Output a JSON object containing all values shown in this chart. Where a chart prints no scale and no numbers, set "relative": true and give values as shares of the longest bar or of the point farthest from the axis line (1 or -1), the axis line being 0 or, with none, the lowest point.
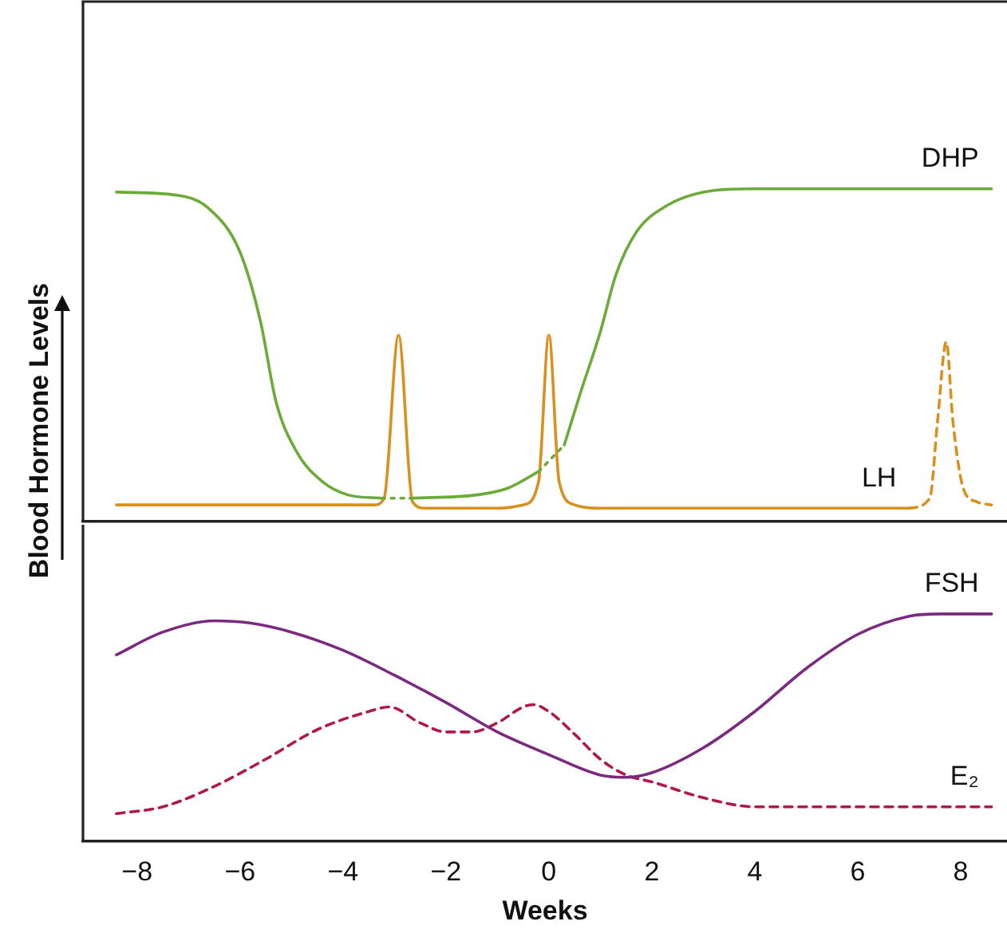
{
  "chart_data": [
    {
      "type": "line",
      "relative": true,
      "ylabel": "Blood Hormone Levels",
      "xlim": [
        -9.05,
        8.9
      ],
      "tick_labels": false,
      "grid": false,
      "legend": false,
      "marker": "none",
      "series": [
        {
          "color": "#6aab3a",
          "line_style": "solid",
          "x": [
            -8.4,
            -7.2,
            -6.6,
            -6.0,
            -5.6,
            -5.3,
            -4.9,
            -4.4,
            -3.9,
            -3.25
          ],
          "values": [
            0.99,
            0.98,
            0.94,
            0.81,
            0.6,
            0.36,
            0.21,
            0.12,
            0.08,
            0.07
          ]
        },
        {
          "color": "#6aab3a",
          "line_style": "dotted",
          "x": [
            -3.25,
            -2.7
          ],
          "values": [
            0.07,
            0.07
          ]
        },
        {
          "color": "#6aab3a",
          "line_style": "solid",
          "x": [
            -2.7,
            -1.4,
            -0.8,
            -0.2
          ],
          "values": [
            0.07,
            0.08,
            0.1,
            0.15
          ]
        },
        {
          "color": "#6aab3a",
          "line_style": "dotted",
          "x": [
            -0.2,
            0.3
          ],
          "values": [
            0.15,
            0.23
          ]
        },
        {
          "name": "DHP",
          "color": "#6aab3a",
          "line_style": "solid",
          "x": [
            0.3,
            0.6,
            1.0,
            1.3,
            1.7,
            2.3,
            3.0,
            4.0,
            8.6
          ],
          "values": [
            0.23,
            0.38,
            0.57,
            0.74,
            0.87,
            0.95,
            0.99,
            1.0,
            1.0
          ]
        },
        {
          "name": "LH",
          "color": "#d8901f",
          "line_style": "solid",
          "x": [
            -8.4,
            -3.4,
            -3.2,
            -2.92,
            -2.65,
            -2.4,
            -1.0,
            -0.5,
            -0.2,
            0,
            0.2,
            0.5,
            1.0,
            7.0
          ],
          "values": [
            0.05,
            0.05,
            0.07,
            0.56,
            0.06,
            0.04,
            0.04,
            0.05,
            0.12,
            0.56,
            0.12,
            0.05,
            0.04,
            0.04
          ]
        },
        {
          "color": "#d8901f",
          "line_style": "dashed",
          "x": [
            7.0,
            7.4,
            7.55,
            7.72,
            7.85,
            8.05,
            8.3,
            8.6
          ],
          "values": [
            0.04,
            0.07,
            0.3,
            0.54,
            0.3,
            0.1,
            0.06,
            0.05
          ]
        }
      ]
    },
    {
      "type": "line",
      "relative": true,
      "xlabel": "Weeks",
      "xlim": [
        -9.05,
        8.9
      ],
      "xticks": [
        {
          "value": -8,
          "label": "−8"
        },
        {
          "value": -6,
          "label": "−6"
        },
        {
          "value": -4,
          "label": "−4"
        },
        {
          "value": -2,
          "label": "−2"
        },
        0,
        2,
        4,
        6,
        8
      ],
      "tick_labels": "x",
      "grid": false,
      "legend": false,
      "marker": "none",
      "series": [
        {
          "name": "FSH",
          "color": "#7b2a7f",
          "line_style": "solid",
          "x": [
            -8.4,
            -7.5,
            -6.5,
            -5.8,
            -5,
            -4,
            -3,
            -2,
            -1,
            0,
            1,
            1.5,
            2,
            3,
            4,
            5,
            6,
            7,
            7.6,
            8.6
          ],
          "values": [
            0.82,
            0.92,
            0.97,
            0.96,
            0.92,
            0.84,
            0.73,
            0.61,
            0.48,
            0.38,
            0.29,
            0.28,
            0.3,
            0.41,
            0.57,
            0.76,
            0.91,
            0.99,
            1.0,
            1.0
          ]
        },
        {
          "name": "E₂",
          "color": "#b0194a",
          "line_style": "dashed",
          "x": [
            -8.4,
            -7.5,
            -6.5,
            -5.5,
            -4.5,
            -3.5,
            -3.1,
            -2.5,
            -2,
            -1.5,
            -1,
            -0.5,
            -0.3,
            0,
            0.5,
            1,
            1.5,
            2,
            3,
            4,
            5,
            8.6
          ],
          "values": [
            0.12,
            0.15,
            0.24,
            0.36,
            0.49,
            0.57,
            0.59,
            0.52,
            0.48,
            0.48,
            0.52,
            0.59,
            0.6,
            0.57,
            0.47,
            0.36,
            0.29,
            0.26,
            0.19,
            0.15,
            0.15,
            0.15
          ]
        }
      ]
    }
  ]
}
